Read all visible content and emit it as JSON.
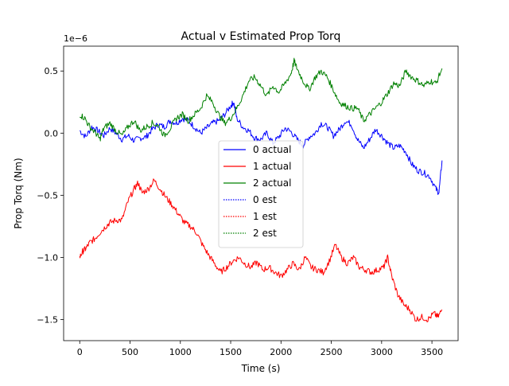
{
  "chart_data": {
    "type": "line",
    "title": "Actual v Estimated Prop Torq",
    "xlabel": "Time (s)",
    "ylabel": "Prop Torq (Nm)",
    "offset_label": "1e−6",
    "xlim": [
      -160,
      3760
    ],
    "ylim": [
      -1.67,
      0.7
    ],
    "x_ticks": [
      0,
      500,
      1000,
      1500,
      2000,
      2500,
      3000,
      3500
    ],
    "x_tick_labels": [
      "0",
      "500",
      "1000",
      "1500",
      "2000",
      "2500",
      "3000",
      "3500"
    ],
    "y_ticks": [
      -1.5,
      -1.0,
      -0.5,
      0.0,
      0.5
    ],
    "y_tick_labels": [
      "−1.5",
      "−1.0",
      "−0.5",
      "0.0",
      "0.5"
    ],
    "grid": false,
    "legend_position": "center",
    "series": [
      {
        "name": "0 actual",
        "color": "#0000ff",
        "style": "solid",
        "points": [
          [
            0,
            0.02
          ],
          [
            60,
            -0.03
          ],
          [
            120,
            0.05
          ],
          [
            180,
            0.02
          ],
          [
            240,
            -0.02
          ],
          [
            300,
            0.04
          ],
          [
            360,
            0.0
          ],
          [
            420,
            -0.05
          ],
          [
            480,
            -0.02
          ],
          [
            540,
            -0.06
          ],
          [
            600,
            -0.04
          ],
          [
            660,
            -0.03
          ],
          [
            720,
            0.03
          ],
          [
            780,
            0.07
          ],
          [
            840,
            0.05
          ],
          [
            900,
            0.1
          ],
          [
            960,
            0.08
          ],
          [
            1020,
            0.12
          ],
          [
            1080,
            0.1
          ],
          [
            1140,
            0.05
          ],
          [
            1200,
            0.0
          ],
          [
            1260,
            0.04
          ],
          [
            1320,
            0.08
          ],
          [
            1380,
            0.1
          ],
          [
            1440,
            0.15
          ],
          [
            1500,
            0.22
          ],
          [
            1530,
            0.25
          ],
          [
            1560,
            0.12
          ],
          [
            1620,
            0.05
          ],
          [
            1680,
            0.02
          ],
          [
            1740,
            -0.04
          ],
          [
            1800,
            -0.05
          ],
          [
            1860,
            0.0
          ],
          [
            1920,
            -0.08
          ],
          [
            1980,
            -0.03
          ],
          [
            2040,
            0.04
          ],
          [
            2100,
            0.01
          ],
          [
            2160,
            -0.05
          ],
          [
            2220,
            -0.1
          ],
          [
            2280,
            -0.03
          ],
          [
            2340,
            0.0
          ],
          [
            2400,
            0.08
          ],
          [
            2460,
            0.05
          ],
          [
            2520,
            -0.02
          ],
          [
            2580,
            0.03
          ],
          [
            2640,
            0.1
          ],
          [
            2700,
            0.07
          ],
          [
            2760,
            -0.05
          ],
          [
            2820,
            -0.12
          ],
          [
            2880,
            -0.05
          ],
          [
            2940,
            0.03
          ],
          [
            3000,
            -0.02
          ],
          [
            3060,
            -0.08
          ],
          [
            3120,
            -0.12
          ],
          [
            3180,
            -0.1
          ],
          [
            3240,
            -0.15
          ],
          [
            3300,
            -0.25
          ],
          [
            3360,
            -0.3
          ],
          [
            3420,
            -0.32
          ],
          [
            3480,
            -0.35
          ],
          [
            3540,
            -0.45
          ],
          [
            3570,
            -0.48
          ],
          [
            3600,
            -0.22
          ]
        ]
      },
      {
        "name": "1 actual",
        "color": "#ff0000",
        "style": "solid",
        "points": [
          [
            0,
            -1.0
          ],
          [
            30,
            -0.95
          ],
          [
            60,
            -0.93
          ],
          [
            100,
            -0.88
          ],
          [
            150,
            -0.85
          ],
          [
            200,
            -0.8
          ],
          [
            260,
            -0.75
          ],
          [
            300,
            -0.72
          ],
          [
            360,
            -0.7
          ],
          [
            420,
            -0.7
          ],
          [
            480,
            -0.55
          ],
          [
            540,
            -0.45
          ],
          [
            580,
            -0.4
          ],
          [
            620,
            -0.48
          ],
          [
            680,
            -0.45
          ],
          [
            740,
            -0.38
          ],
          [
            800,
            -0.45
          ],
          [
            860,
            -0.52
          ],
          [
            920,
            -0.58
          ],
          [
            980,
            -0.65
          ],
          [
            1040,
            -0.72
          ],
          [
            1100,
            -0.75
          ],
          [
            1160,
            -0.8
          ],
          [
            1220,
            -0.9
          ],
          [
            1280,
            -0.98
          ],
          [
            1340,
            -1.05
          ],
          [
            1400,
            -1.12
          ],
          [
            1460,
            -1.08
          ],
          [
            1520,
            -1.03
          ],
          [
            1580,
            -1.0
          ],
          [
            1640,
            -1.05
          ],
          [
            1700,
            -1.08
          ],
          [
            1760,
            -1.04
          ],
          [
            1820,
            -1.1
          ],
          [
            1880,
            -1.08
          ],
          [
            1940,
            -1.12
          ],
          [
            2000,
            -1.15
          ],
          [
            2060,
            -1.1
          ],
          [
            2120,
            -1.05
          ],
          [
            2180,
            -1.1
          ],
          [
            2240,
            -1.0
          ],
          [
            2300,
            -1.08
          ],
          [
            2360,
            -1.1
          ],
          [
            2420,
            -1.12
          ],
          [
            2480,
            -1.03
          ],
          [
            2540,
            -0.9
          ],
          [
            2600,
            -1.0
          ],
          [
            2660,
            -1.05
          ],
          [
            2720,
            -1.0
          ],
          [
            2780,
            -1.08
          ],
          [
            2840,
            -1.1
          ],
          [
            2900,
            -1.12
          ],
          [
            2960,
            -1.1
          ],
          [
            3020,
            -1.08
          ],
          [
            3060,
            -1.0
          ],
          [
            3100,
            -1.15
          ],
          [
            3160,
            -1.3
          ],
          [
            3220,
            -1.38
          ],
          [
            3280,
            -1.42
          ],
          [
            3340,
            -1.5
          ],
          [
            3400,
            -1.48
          ],
          [
            3460,
            -1.5
          ],
          [
            3520,
            -1.45
          ],
          [
            3560,
            -1.48
          ],
          [
            3600,
            -1.42
          ]
        ]
      },
      {
        "name": "2 actual",
        "color": "#008000",
        "style": "solid",
        "points": [
          [
            0,
            0.15
          ],
          [
            50,
            0.12
          ],
          [
            100,
            0.05
          ],
          [
            160,
            0.0
          ],
          [
            200,
            -0.05
          ],
          [
            240,
            0.04
          ],
          [
            300,
            0.08
          ],
          [
            360,
            0.02
          ],
          [
            420,
            -0.02
          ],
          [
            480,
            0.05
          ],
          [
            540,
            0.1
          ],
          [
            600,
            0.02
          ],
          [
            660,
            0.05
          ],
          [
            720,
            0.08
          ],
          [
            780,
            0.06
          ],
          [
            840,
            -0.02
          ],
          [
            900,
            0.04
          ],
          [
            960,
            0.12
          ],
          [
            1020,
            0.15
          ],
          [
            1080,
            0.1
          ],
          [
            1140,
            0.15
          ],
          [
            1200,
            0.2
          ],
          [
            1260,
            0.3
          ],
          [
            1320,
            0.25
          ],
          [
            1380,
            0.15
          ],
          [
            1440,
            0.08
          ],
          [
            1500,
            0.12
          ],
          [
            1560,
            0.2
          ],
          [
            1620,
            0.3
          ],
          [
            1680,
            0.42
          ],
          [
            1740,
            0.45
          ],
          [
            1800,
            0.38
          ],
          [
            1860,
            0.3
          ],
          [
            1920,
            0.38
          ],
          [
            1980,
            0.33
          ],
          [
            2040,
            0.4
          ],
          [
            2100,
            0.48
          ],
          [
            2130,
            0.58
          ],
          [
            2160,
            0.52
          ],
          [
            2220,
            0.42
          ],
          [
            2280,
            0.35
          ],
          [
            2340,
            0.45
          ],
          [
            2400,
            0.5
          ],
          [
            2460,
            0.45
          ],
          [
            2520,
            0.35
          ],
          [
            2580,
            0.25
          ],
          [
            2640,
            0.22
          ],
          [
            2700,
            0.2
          ],
          [
            2760,
            0.2
          ],
          [
            2820,
            0.1
          ],
          [
            2880,
            0.15
          ],
          [
            2940,
            0.2
          ],
          [
            3000,
            0.25
          ],
          [
            3060,
            0.32
          ],
          [
            3120,
            0.4
          ],
          [
            3180,
            0.38
          ],
          [
            3240,
            0.5
          ],
          [
            3300,
            0.45
          ],
          [
            3360,
            0.42
          ],
          [
            3420,
            0.38
          ],
          [
            3480,
            0.42
          ],
          [
            3540,
            0.4
          ],
          [
            3600,
            0.52
          ]
        ]
      },
      {
        "name": "0 est",
        "color": "#0000ff",
        "style": "dotted",
        "points": []
      },
      {
        "name": "1 est",
        "color": "#ff0000",
        "style": "dotted",
        "points": []
      },
      {
        "name": "2 est",
        "color": "#008000",
        "style": "dotted",
        "points": []
      }
    ]
  }
}
